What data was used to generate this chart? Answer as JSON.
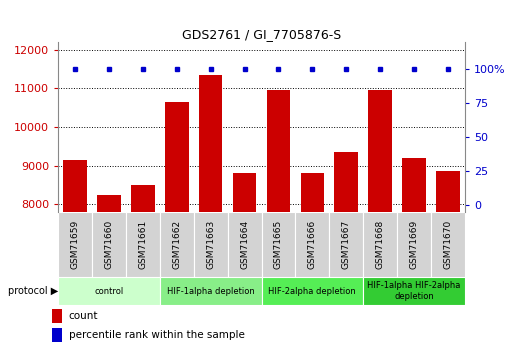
{
  "title": "GDS2761 / GI_7705876-S",
  "samples": [
    "GSM71659",
    "GSM71660",
    "GSM71661",
    "GSM71662",
    "GSM71663",
    "GSM71664",
    "GSM71665",
    "GSM71666",
    "GSM71667",
    "GSM71668",
    "GSM71669",
    "GSM71670"
  ],
  "counts": [
    9150,
    8250,
    8500,
    10650,
    11350,
    8800,
    10950,
    8800,
    9350,
    10950,
    9200,
    8850
  ],
  "percentile_ranks": [
    100,
    100,
    100,
    100,
    100,
    100,
    100,
    100,
    100,
    100,
    100,
    100
  ],
  "ylim_left": [
    7800,
    12200
  ],
  "ylim_right": [
    -4.8,
    120
  ],
  "yticks_left": [
    8000,
    9000,
    10000,
    11000,
    12000
  ],
  "yticks_right": [
    0,
    25,
    50,
    75,
    100
  ],
  "bar_color": "#cc0000",
  "dot_color": "#0000cc",
  "bg_color": "#ffffff",
  "sample_box_color": "#d3d3d3",
  "protocol_groups": [
    {
      "label": "control",
      "start": 0,
      "end": 2,
      "color": "#ccffcc"
    },
    {
      "label": "HIF-1alpha depletion",
      "start": 3,
      "end": 5,
      "color": "#88ee88"
    },
    {
      "label": "HIF-2alpha depletion",
      "start": 6,
      "end": 8,
      "color": "#55ee55"
    },
    {
      "label": "HIF-1alpha HIF-2alpha\ndepletion",
      "start": 9,
      "end": 11,
      "color": "#33cc33"
    }
  ],
  "legend_count_label": "count",
  "legend_percentile_label": "percentile rank within the sample"
}
